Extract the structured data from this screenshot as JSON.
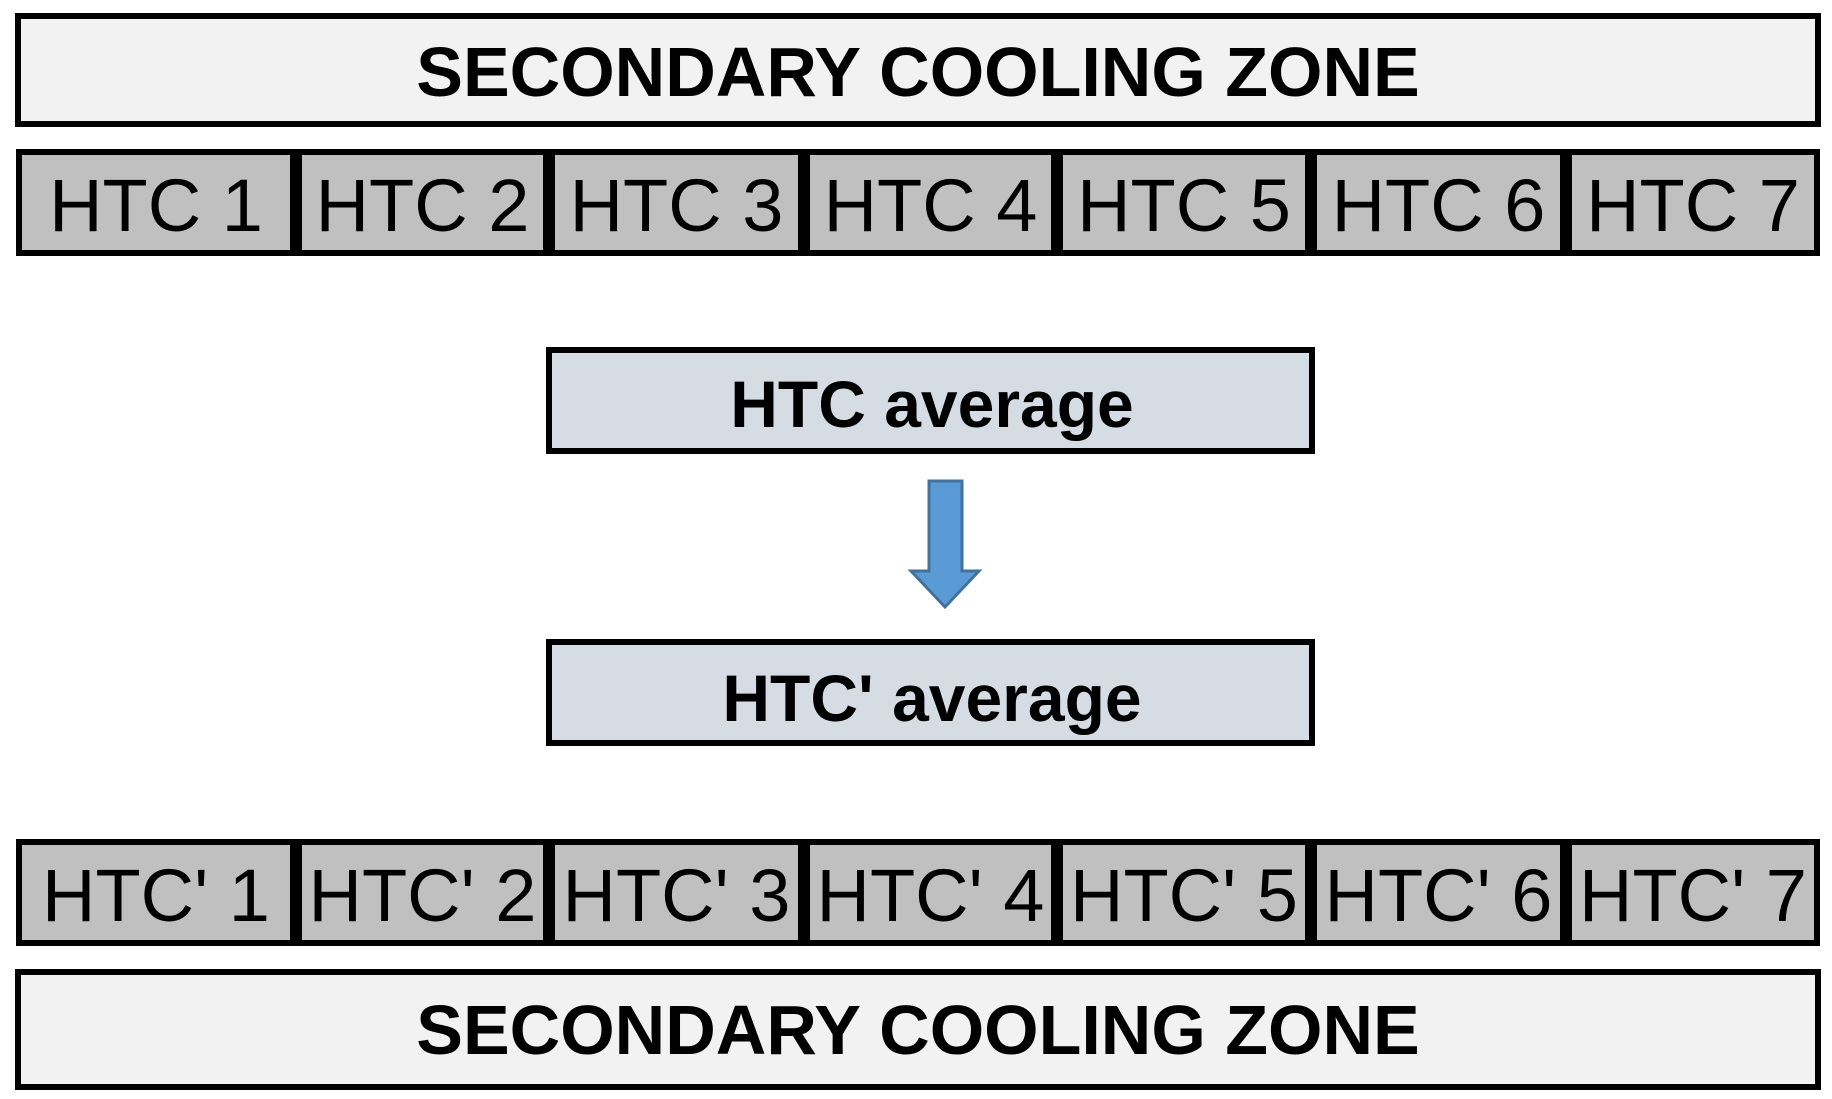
{
  "top_zone": {
    "label": "SECONDARY COOLING ZONE"
  },
  "htc_row": {
    "cells": [
      "HTC 1",
      "HTC 2",
      "HTC 3",
      "HTC 4",
      "HTC 5",
      "HTC 6",
      "HTC 7"
    ]
  },
  "average_box": {
    "label": "HTC average"
  },
  "result_box": {
    "label": "HTC' average"
  },
  "htc_prime_row": {
    "cells": [
      "HTC' 1",
      "HTC' 2",
      "HTC' 3",
      "HTC' 4",
      "HTC' 5",
      "HTC' 6",
      "HTC' 7"
    ]
  },
  "bottom_zone": {
    "label": "SECONDARY COOLING ZONE"
  }
}
